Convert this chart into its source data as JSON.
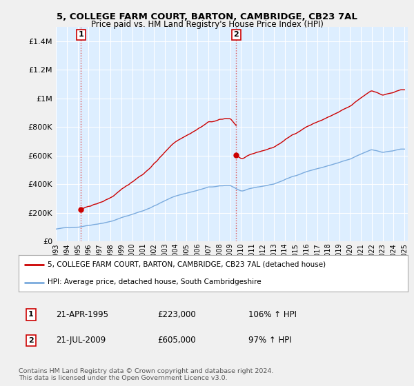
{
  "title": "5, COLLEGE FARM COURT, BARTON, CAMBRIDGE, CB23 7AL",
  "subtitle": "Price paid vs. HM Land Registry's House Price Index (HPI)",
  "sale1_date": "21-APR-1995",
  "sale1_price": 223000,
  "sale1_hpi": "106%",
  "sale2_date": "21-JUL-2009",
  "sale2_price": 605000,
  "sale2_hpi": "97%",
  "legend_line1": "5, COLLEGE FARM COURT, BARTON, CAMBRIDGE, CB23 7AL (detached house)",
  "legend_line2": "HPI: Average price, detached house, South Cambridgeshire",
  "footer": "Contains HM Land Registry data © Crown copyright and database right 2024.\nThis data is licensed under the Open Government Licence v3.0.",
  "hpi_color": "#7aaadd",
  "price_color": "#cc0000",
  "vline_color": "#dd4444",
  "background_color": "#f0f0f0",
  "plot_background": "#ddeeff",
  "grid_color": "#ffffff",
  "ylim": [
    0,
    1500000
  ],
  "yticks": [
    0,
    200000,
    400000,
    600000,
    800000,
    1000000,
    1200000,
    1400000
  ],
  "ytick_labels": [
    "£0",
    "£200K",
    "£400K",
    "£600K",
    "£800K",
    "£1M",
    "£1.2M",
    "£1.4M"
  ],
  "sale1_year": 1995.3,
  "sale2_year": 2009.55
}
